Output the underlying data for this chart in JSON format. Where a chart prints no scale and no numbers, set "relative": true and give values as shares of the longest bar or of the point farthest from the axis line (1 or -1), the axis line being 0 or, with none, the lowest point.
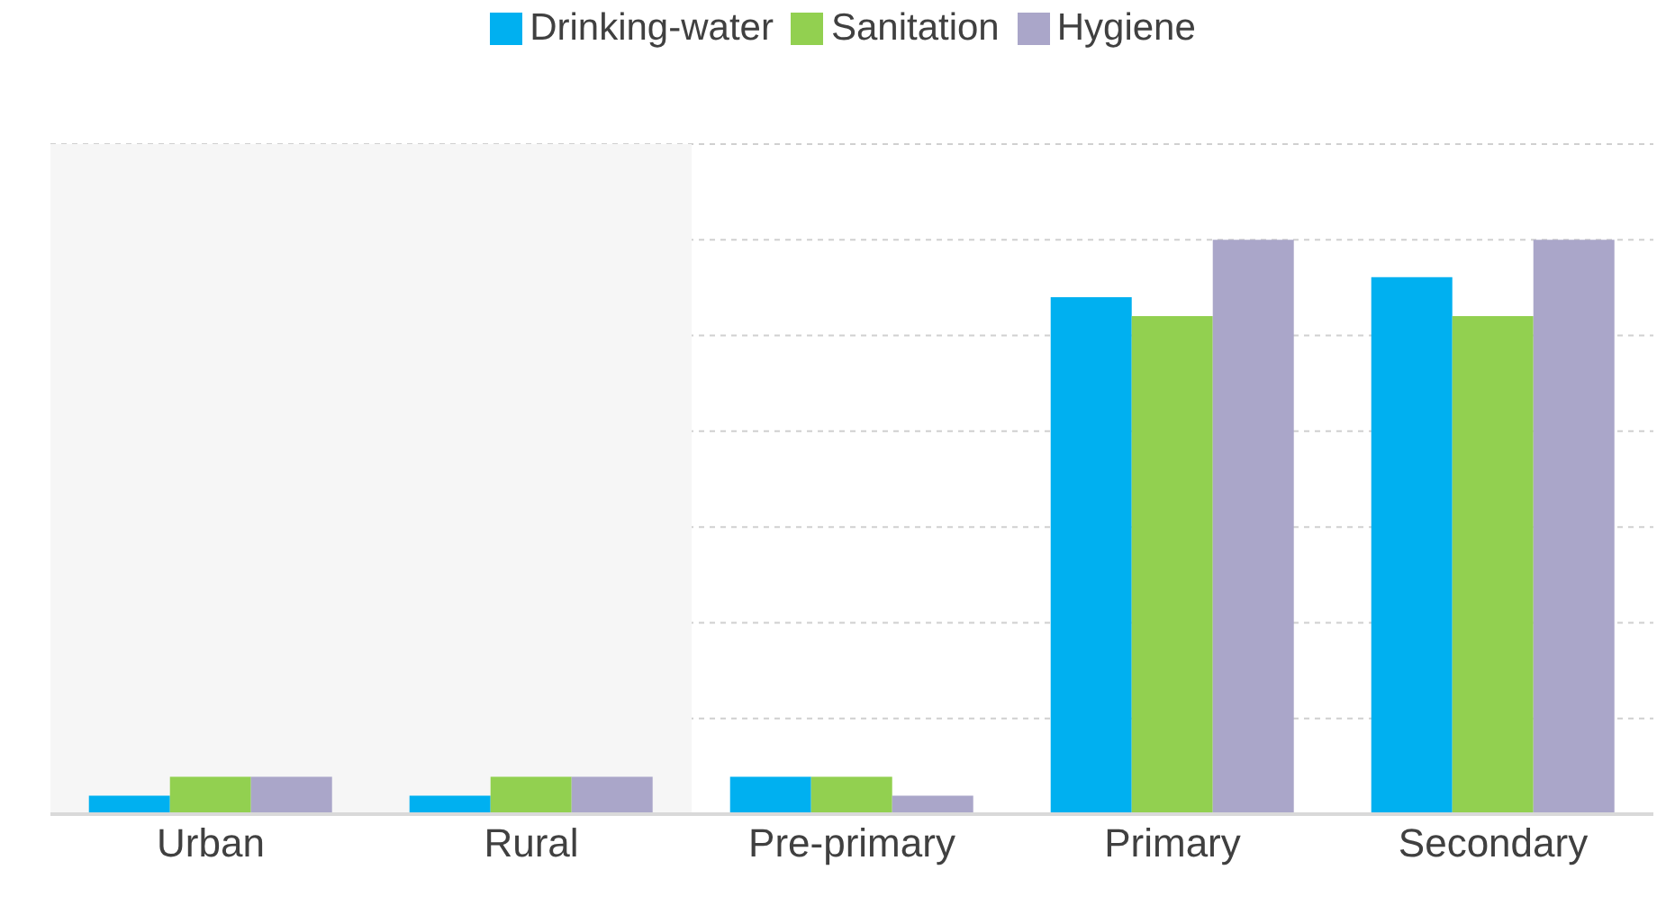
{
  "chart_data": {
    "type": "bar",
    "relative": true,
    "categories": [
      "Urban",
      "Rural",
      "Pre-primary",
      "Primary",
      "Secondary"
    ],
    "series": [
      {
        "name": "Drinking-water",
        "color": "#00b0f0",
        "values": [
          0.032,
          0.032,
          0.065,
          0.9,
          0.935
        ]
      },
      {
        "name": "Sanitation",
        "color": "#92d050",
        "values": [
          0.065,
          0.065,
          0.065,
          0.867,
          0.867
        ]
      },
      {
        "name": "Hygiene",
        "color": "#aaa6c9",
        "values": [
          0.065,
          0.065,
          0.032,
          1,
          1
        ]
      }
    ],
    "bands": [
      {
        "axis": "x",
        "from": "Urban",
        "to": "Rural",
        "color": "#f6f6f6"
      }
    ],
    "grid": "y",
    "legend": "top"
  }
}
